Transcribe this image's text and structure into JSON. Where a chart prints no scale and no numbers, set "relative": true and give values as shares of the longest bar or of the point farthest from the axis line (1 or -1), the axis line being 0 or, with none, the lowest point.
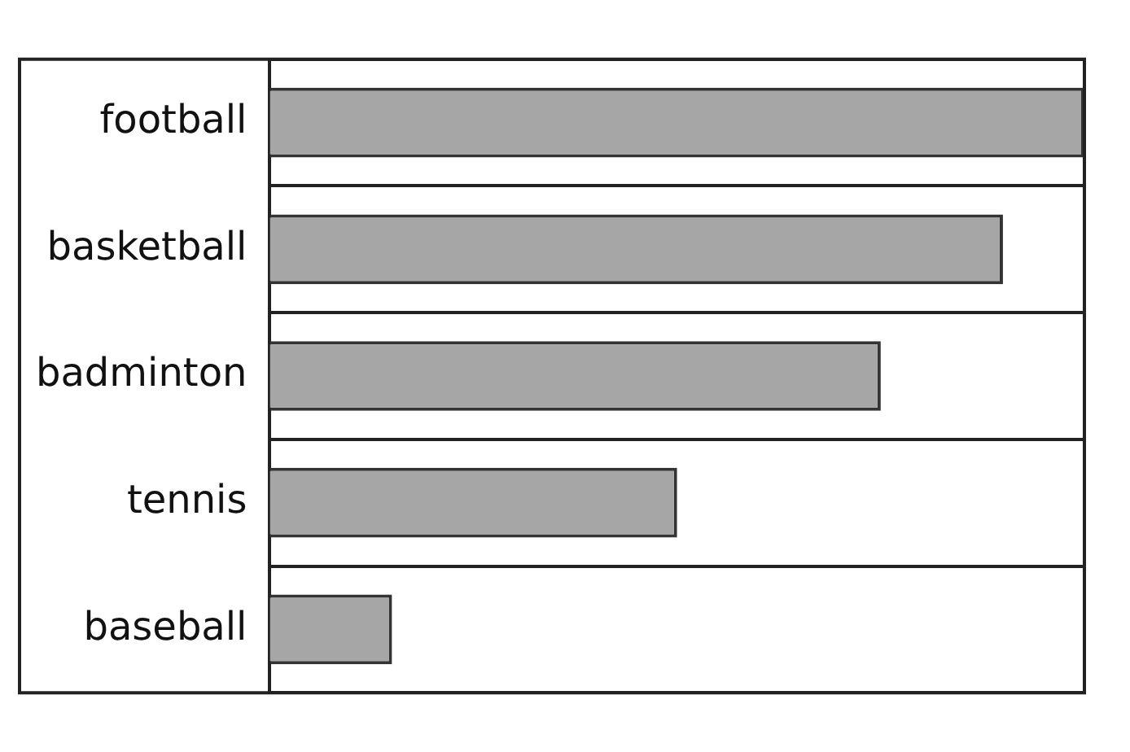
{
  "chart_data": {
    "type": "bar",
    "orientation": "horizontal",
    "relative": true,
    "categories": [
      "football",
      "basketball",
      "badminton",
      "tennis",
      "baseball"
    ],
    "values": [
      1,
      0.9,
      0.75,
      0.5,
      0.15
    ],
    "color": "#a6a6a6",
    "grid": "y",
    "legend": false
  }
}
